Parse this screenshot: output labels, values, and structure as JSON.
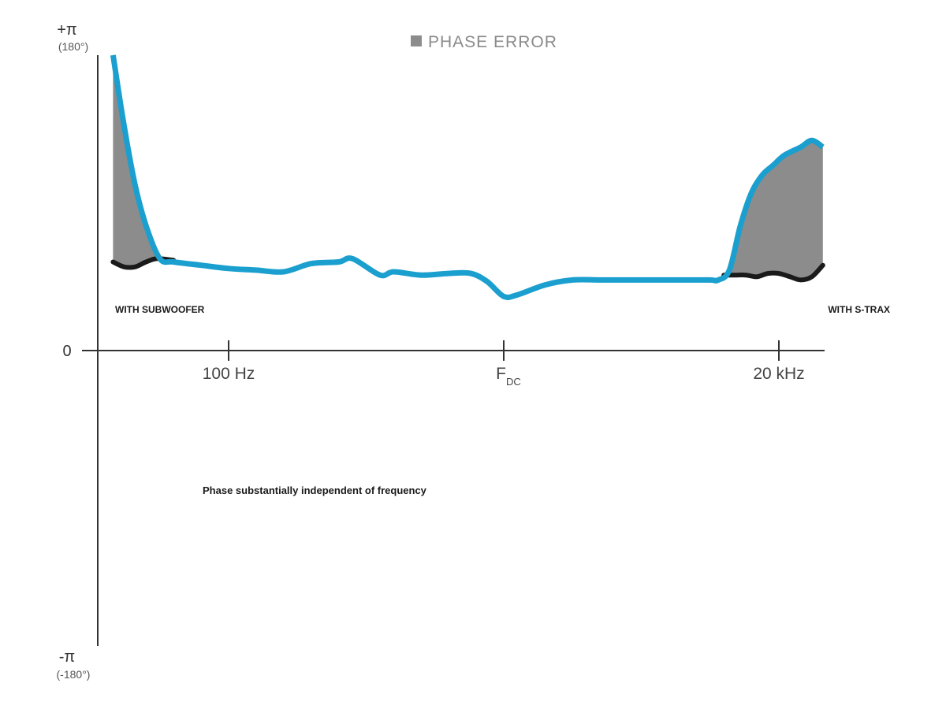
{
  "chart_data": {
    "type": "area",
    "title": "",
    "xlabel": "",
    "ylabel": "",
    "x": [
      0.0,
      0.05,
      0.1,
      0.15,
      0.2,
      0.25,
      0.3,
      0.35,
      0.4,
      0.45,
      0.5,
      0.55,
      0.6,
      0.65,
      0.7,
      0.75,
      0.8,
      0.85,
      0.9,
      0.95,
      1.0,
      1.05,
      1.1,
      1.15,
      1.2,
      1.25,
      1.3,
      1.35,
      1.4,
      1.45,
      1.5,
      1.55,
      1.6,
      1.65,
      1.7,
      1.75,
      1.8,
      1.85,
      1.9,
      1.95,
      2.0,
      2.05,
      2.1,
      2.15,
      2.2,
      2.25,
      2.3,
      2.35,
      2.4,
      2.45,
      2.5,
      2.55,
      2.6,
      2.65,
      2.7
    ],
    "xlim": [
      -0.48,
      2.16
    ],
    "ylim": [
      -180,
      180
    ],
    "x_ticks": [
      {
        "x": 0.0,
        "label": "100 Hz",
        "sub": ""
      },
      {
        "x": 1.0,
        "label": "F",
        "sub": "DC"
      },
      {
        "x": 2.0,
        "label": "20 kHz",
        "sub": ""
      }
    ],
    "y_ticks": [
      {
        "value": 180,
        "label": "+π",
        "sublabel": "(180°)"
      },
      {
        "value": 0,
        "label": "0",
        "sublabel": ""
      },
      {
        "value": -180,
        "label": "-π",
        "sublabel": "(-180°)"
      }
    ],
    "series": [
      {
        "x": [
          -0.42,
          -0.38,
          -0.34,
          -0.3,
          -0.25,
          -0.2,
          -0.1,
          0.0,
          0.1,
          0.2,
          0.3,
          0.4,
          0.45,
          0.55,
          0.6,
          0.7,
          0.8,
          0.88,
          0.94,
          1.0,
          1.05,
          1.15,
          1.25,
          1.35,
          1.45,
          1.55,
          1.65,
          1.75,
          1.78,
          1.82,
          1.86,
          1.9,
          1.94,
          1.98,
          2.02,
          2.08,
          2.12,
          2.16
        ],
        "values": [
          180,
          137,
          101,
          76,
          56,
          54,
          52,
          50,
          49,
          48,
          53,
          54,
          56,
          46,
          48,
          46,
          47,
          47,
          42,
          33,
          34,
          40,
          43,
          43,
          43,
          43,
          43,
          43,
          43,
          49,
          76,
          96,
          107,
          113,
          119,
          124,
          128,
          124
        ]
      },
      {
        "x": [
          -0.42,
          -0.38,
          -0.34,
          -0.3,
          -0.26,
          -0.2,
          1.8,
          1.84,
          1.88,
          1.92,
          1.96,
          2.0,
          2.04,
          2.08,
          2.12,
          2.16
        ],
        "values": [
          54,
          51,
          51,
          54,
          56,
          55,
          46,
          46,
          46,
          45,
          47,
          47,
          45,
          43,
          45,
          52
        ]
      }
    ],
    "legend": [
      {
        "label": "PHASE ERROR",
        "color": "#8c8c8c"
      }
    ],
    "legend_position": "top-center",
    "annotations": [
      {
        "text": "WITH SUBWOOFER",
        "x": -0.42,
        "y": 35
      },
      {
        "text": "WITH S-TRAX",
        "x": 2.16,
        "y": 35
      },
      {
        "text": "Phase substantially independent of frequency",
        "x": -0.1,
        "y": -120
      }
    ],
    "colors": {
      "response": "#1a9fcf",
      "reference": "#1a1a1a",
      "error_fill": "#8c8c8c",
      "axis": "#333333"
    }
  }
}
